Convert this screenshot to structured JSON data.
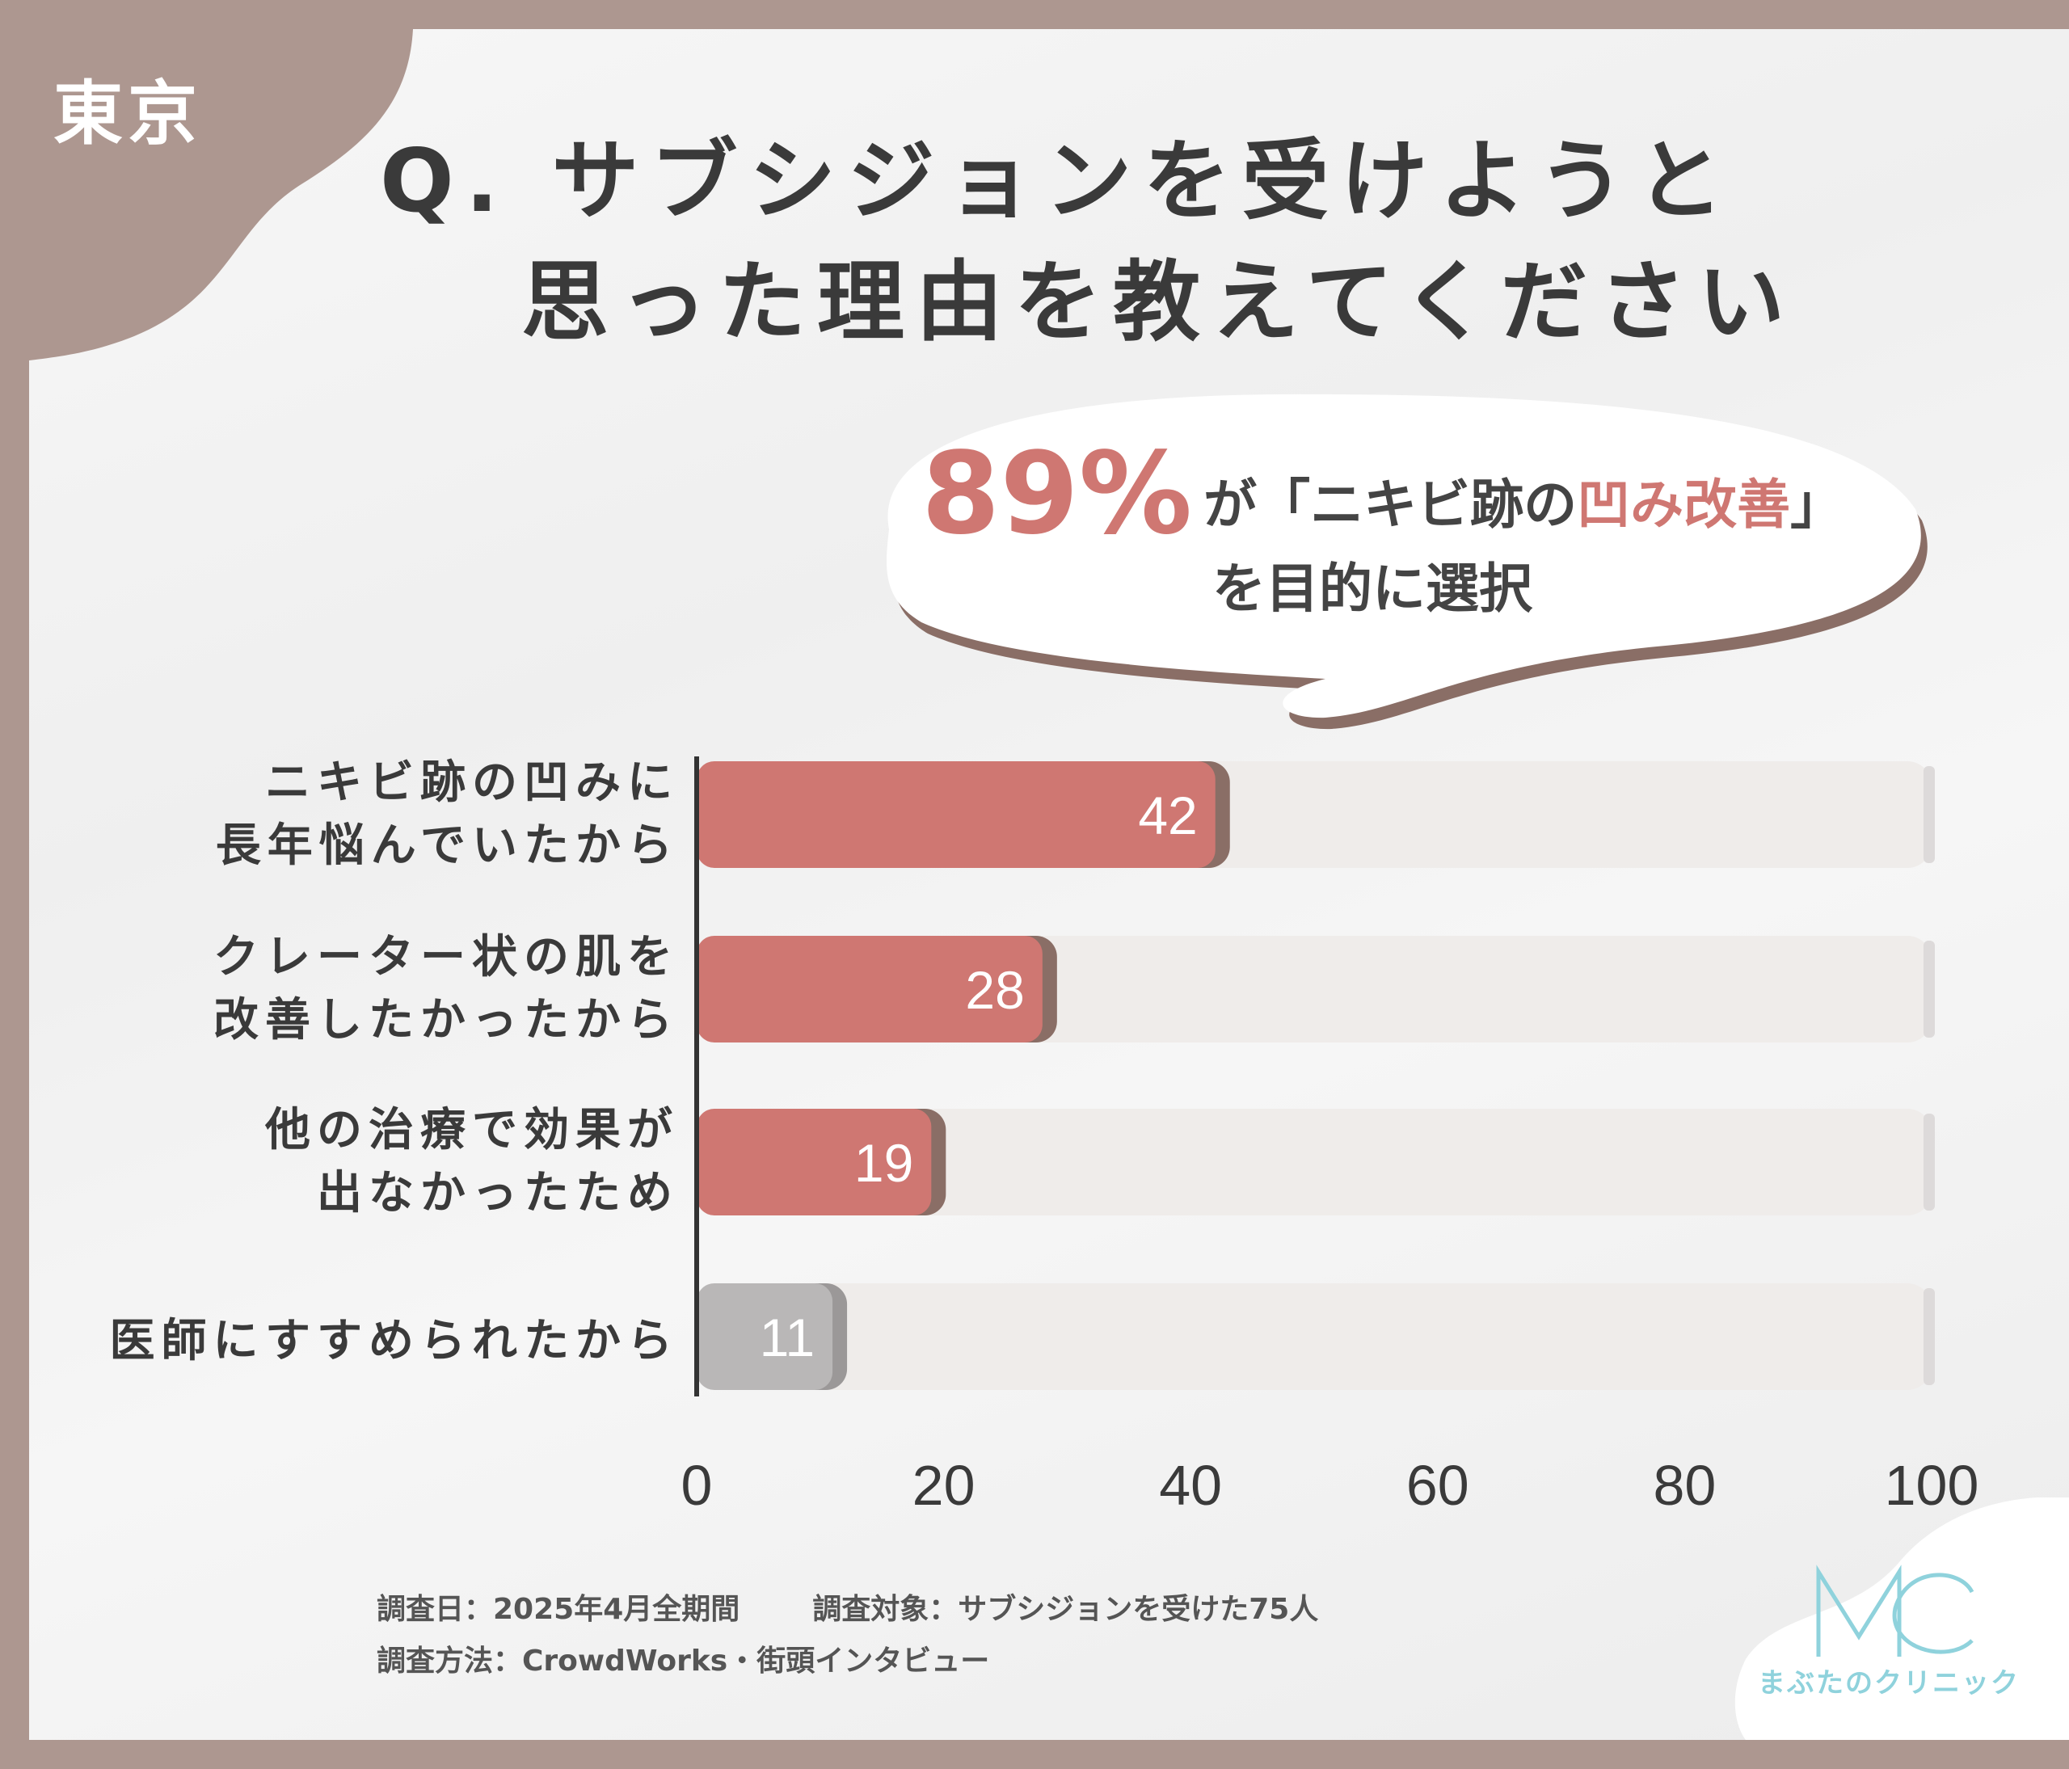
{
  "region_label": "東京",
  "title": {
    "line1": "Q. サブシジョンを受けようと",
    "line2": "思った理由を教えてください"
  },
  "callout": {
    "percent": "89%",
    "text_before": "が「ニキビ跡の",
    "highlight": "凹み改善",
    "text_after": "」",
    "line2": "を目的に選択"
  },
  "colors": {
    "accent": "#cf7772",
    "bar_muted": "#b9b7b7",
    "track": "#efecea",
    "frame": "#ad9790",
    "logo": "#8fd2dc"
  },
  "chart_data": {
    "type": "bar",
    "orientation": "horizontal",
    "categories": [
      [
        "ニキビ跡の凹みに",
        "長年悩んでいたから"
      ],
      [
        "クレーター状の肌を",
        "改善したかったから"
      ],
      [
        "他の治療で効果が",
        "出なかったため"
      ],
      [
        "医師にすすめられたから"
      ]
    ],
    "values": [
      42,
      28,
      19,
      11
    ],
    "highlighted": [
      true,
      true,
      true,
      false
    ],
    "xlim": [
      0,
      100
    ],
    "xticks": [
      "0",
      "20",
      "40",
      "60",
      "80",
      "100"
    ],
    "grid": false,
    "title": "",
    "xlabel": "",
    "ylabel": ""
  },
  "footer": {
    "survey_date": "調査日：2025年4月全期間",
    "survey_target": "調査対象：サブシジョンを受けた75人",
    "survey_method": "調査方法：CrowdWorks・街頭インタビュー"
  },
  "logo": {
    "mark": "MC",
    "name": "まぶたのクリニック"
  }
}
